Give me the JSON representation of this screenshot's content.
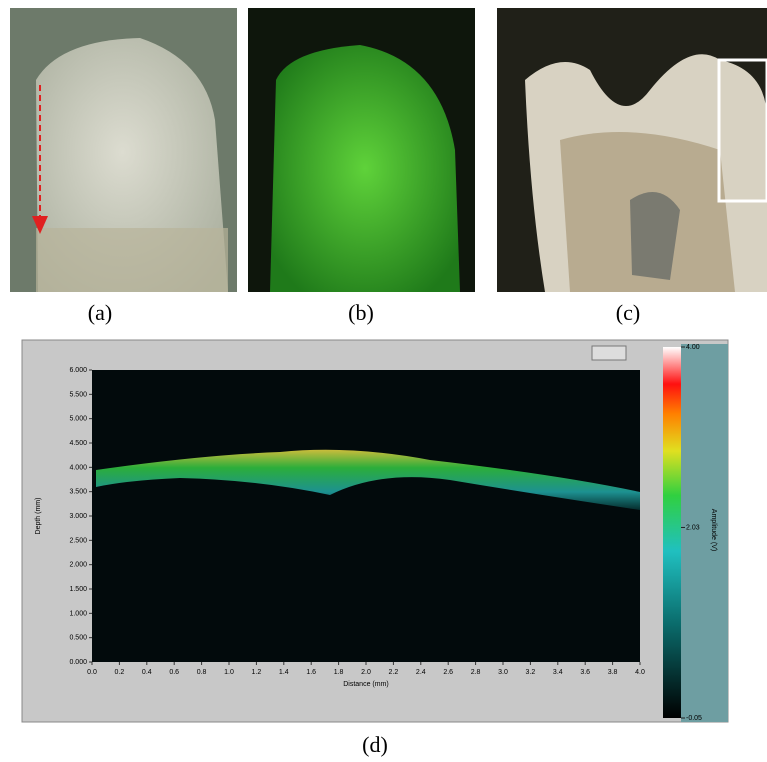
{
  "figure": {
    "panel_labels": [
      "(a)",
      "(b)",
      "(c)",
      "(d)"
    ],
    "oct": {
      "type": "image-scan",
      "xlabel": "Distance (mm)",
      "ylabel": "Depth (mm)",
      "xlim": [
        0,
        4
      ],
      "ylim": [
        0,
        6
      ],
      "xticks": [
        {
          "value": 0,
          "label": "0.0"
        },
        {
          "value": 0.2,
          "label": "0.2"
        },
        {
          "value": 0.4,
          "label": "0.4"
        },
        {
          "value": 0.6,
          "label": "0.6"
        },
        {
          "value": 0.8,
          "label": "0.8"
        },
        {
          "value": 1,
          "label": "1.0"
        },
        {
          "value": 1.2,
          "label": "1.2"
        },
        {
          "value": 1.4,
          "label": "1.4"
        },
        {
          "value": 1.6,
          "label": "1.6"
        },
        {
          "value": 1.8,
          "label": "1.8"
        },
        {
          "value": 2,
          "label": "2.0"
        },
        {
          "value": 2.2,
          "label": "2.2"
        },
        {
          "value": 2.4,
          "label": "2.4"
        },
        {
          "value": 2.6,
          "label": "2.6"
        },
        {
          "value": 2.8,
          "label": "2.8"
        },
        {
          "value": 3,
          "label": "3.0"
        },
        {
          "value": 3.2,
          "label": "3.2"
        },
        {
          "value": 3.4,
          "label": "3.4"
        },
        {
          "value": 3.6,
          "label": "3.6"
        },
        {
          "value": 3.8,
          "label": "3.8"
        },
        {
          "value": 4,
          "label": "4.0"
        }
      ],
      "yticks": [
        {
          "value": 0,
          "label": "0.000"
        },
        {
          "value": 0.5,
          "label": "0.500"
        },
        {
          "value": 1,
          "label": "1.000"
        },
        {
          "value": 1.5,
          "label": "1.500"
        },
        {
          "value": 2,
          "label": "2.000"
        },
        {
          "value": 2.5,
          "label": "2.500"
        },
        {
          "value": 3,
          "label": "3.000"
        },
        {
          "value": 3.5,
          "label": "3.500"
        },
        {
          "value": 4,
          "label": "4.000"
        },
        {
          "value": 4.5,
          "label": "4.500"
        },
        {
          "value": 5,
          "label": "5.000"
        },
        {
          "value": 5.5,
          "label": "5.500"
        },
        {
          "value": 6,
          "label": "6.000"
        }
      ],
      "colorbar": {
        "label": "Amplitude (V)",
        "lim": [
          -0.05,
          4
        ],
        "ticks": [
          {
            "value": 4,
            "label": "4.00"
          },
          {
            "value": 2.03,
            "label": "2.03"
          },
          {
            "value": -0.05,
            "label": "-0.05"
          }
        ]
      }
    }
  }
}
